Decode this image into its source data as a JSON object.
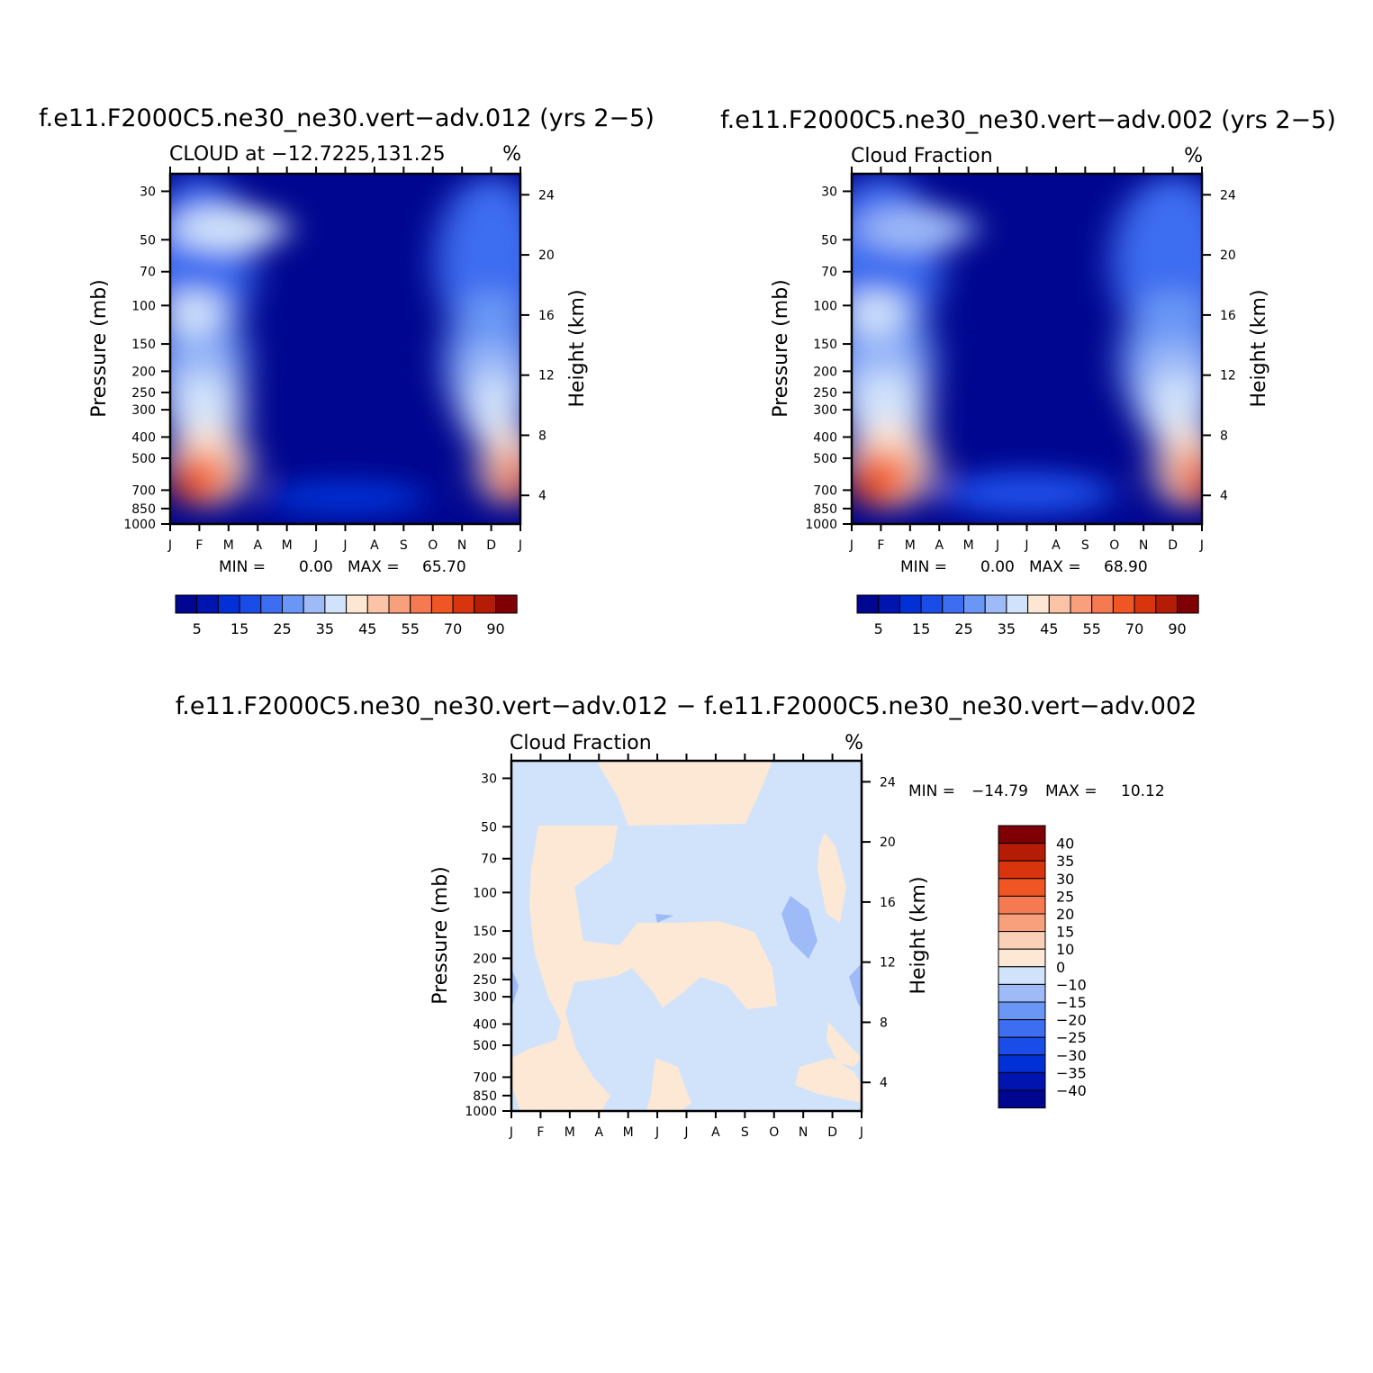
{
  "figure": {
    "background": "#ffffff"
  },
  "palette_abs": [
    "#00068f",
    "#0015b0",
    "#0030d6",
    "#1a4de8",
    "#3d6df0",
    "#6a97f5",
    "#9ebaf7",
    "#d1e3fb",
    "#fde6d3",
    "#fbc4a8",
    "#f8a07c",
    "#f57a52",
    "#f05524",
    "#d8350f",
    "#b41c06",
    "#7f0004"
  ],
  "palette_diff": [
    "#00068f",
    "#0015b0",
    "#0030d6",
    "#1a4de8",
    "#3d6df0",
    "#6a97f5",
    "#9ebaf7",
    "#d1e3fb",
    "#fde8d5",
    "#fbd0b9",
    "#f8a07c",
    "#f57a52",
    "#f05524",
    "#d8350f",
    "#b41c06",
    "#7f0004"
  ],
  "chart_data": [
    {
      "type": "heatmap",
      "id": "panel-a",
      "title": "f.e11.F2000C5.ne30_ne30.vert−adv.012 (yrs 2−5)",
      "left_label": "CLOUD at −12.7225,131.25",
      "right_label": "%",
      "ylabel": "Pressure (mb)",
      "ylabel_right": "Height (km)",
      "x_tick_labels": [
        "J",
        "F",
        "M",
        "A",
        "M",
        "J",
        "J",
        "A",
        "S",
        "O",
        "N",
        "D",
        "J"
      ],
      "y_tick_labels": [
        "30",
        "50",
        "70",
        "100",
        "150",
        "200",
        "250",
        "300",
        "400",
        "500",
        "700",
        "850",
        "1000"
      ],
      "y_tick_labels_right": [
        "24",
        "20",
        "16",
        "12",
        "8",
        "4"
      ],
      "stats": {
        "min_label": "MIN =",
        "min": "0.00",
        "max_label": "MAX =",
        "max": "65.70"
      },
      "colorbar_labels": [
        "5",
        "15",
        "25",
        "35",
        "45",
        "55",
        "70",
        "90"
      ],
      "blobs": [
        {
          "x": 1.0,
          "y": 4.0,
          "rx": 1.9,
          "ry": 3.9,
          "level": 4
        },
        {
          "x": 11.0,
          "y": 4.0,
          "rx": 1.9,
          "ry": 3.9,
          "level": 4
        },
        {
          "x": 1.0,
          "y": 8.5,
          "rx": 1.6,
          "ry": 3.2,
          "level": 5
        },
        {
          "x": 11.0,
          "y": 8.5,
          "rx": 1.6,
          "ry": 3.2,
          "level": 5
        },
        {
          "x": 1.1,
          "y": 10.0,
          "rx": 1.4,
          "ry": 2.3,
          "level": 6
        },
        {
          "x": 11.0,
          "y": 10.0,
          "rx": 1.2,
          "ry": 2.3,
          "level": 6
        },
        {
          "x": 1.2,
          "y": 11.0,
          "rx": 1.3,
          "ry": 1.8,
          "level": 7
        },
        {
          "x": 11.2,
          "y": 11.0,
          "rx": 1.0,
          "ry": 1.8,
          "level": 7
        },
        {
          "x": 1.3,
          "y": 13.3,
          "rx": 1.4,
          "ry": 1.9,
          "level": 8
        },
        {
          "x": 11.6,
          "y": 13.3,
          "rx": 1.0,
          "ry": 1.9,
          "level": 8
        },
        {
          "x": 1.1,
          "y": 13.8,
          "rx": 1.1,
          "ry": 1.4,
          "level": 10
        },
        {
          "x": 11.7,
          "y": 13.8,
          "rx": 0.7,
          "ry": 1.4,
          "level": 10
        },
        {
          "x": 0.9,
          "y": 14.1,
          "rx": 0.9,
          "ry": 1.0,
          "level": 12
        },
        {
          "x": 11.9,
          "y": 14.1,
          "rx": 0.45,
          "ry": 0.9,
          "level": 12
        },
        {
          "x": 6.0,
          "y": 14.8,
          "rx": 2.8,
          "ry": 0.8,
          "level": 2
        },
        {
          "x": 2.0,
          "y": 2.5,
          "rx": 2.0,
          "ry": 1.0,
          "level": 7
        },
        {
          "x": 0.8,
          "y": 6.4,
          "rx": 1.0,
          "ry": 1.1,
          "level": 7
        }
      ]
    },
    {
      "type": "heatmap",
      "id": "panel-b",
      "title": "f.e11.F2000C5.ne30_ne30.vert−adv.002 (yrs 2−5)",
      "left_label": "Cloud Fraction",
      "right_label": "%",
      "ylabel": "Pressure (mb)",
      "ylabel_right": "Height (km)",
      "x_tick_labels": [
        "J",
        "F",
        "M",
        "A",
        "M",
        "J",
        "J",
        "A",
        "S",
        "O",
        "N",
        "D",
        "J"
      ],
      "y_tick_labels": [
        "30",
        "50",
        "70",
        "100",
        "150",
        "200",
        "250",
        "300",
        "400",
        "500",
        "700",
        "850",
        "1000"
      ],
      "y_tick_labels_right": [
        "24",
        "20",
        "16",
        "12",
        "8",
        "4"
      ],
      "stats": {
        "min_label": "MIN =",
        "min": "0.00",
        "max_label": "MAX =",
        "max": "68.90"
      },
      "colorbar_labels": [
        "5",
        "15",
        "25",
        "35",
        "45",
        "55",
        "70",
        "90"
      ],
      "blobs": [
        {
          "x": 1.0,
          "y": 4.0,
          "rx": 2.1,
          "ry": 3.9,
          "level": 4
        },
        {
          "x": 11.0,
          "y": 4.0,
          "rx": 2.1,
          "ry": 3.9,
          "level": 4
        },
        {
          "x": 1.0,
          "y": 8.5,
          "rx": 1.8,
          "ry": 3.2,
          "level": 5
        },
        {
          "x": 11.0,
          "y": 8.5,
          "rx": 1.8,
          "ry": 3.2,
          "level": 5
        },
        {
          "x": 1.1,
          "y": 10.0,
          "rx": 1.5,
          "ry": 2.4,
          "level": 6
        },
        {
          "x": 11.0,
          "y": 10.0,
          "rx": 1.3,
          "ry": 2.4,
          "level": 6
        },
        {
          "x": 1.2,
          "y": 11.0,
          "rx": 1.4,
          "ry": 1.9,
          "level": 7
        },
        {
          "x": 11.2,
          "y": 11.0,
          "rx": 1.1,
          "ry": 1.9,
          "level": 7
        },
        {
          "x": 1.3,
          "y": 13.3,
          "rx": 1.5,
          "ry": 2.0,
          "level": 8
        },
        {
          "x": 11.5,
          "y": 13.3,
          "rx": 1.1,
          "ry": 2.0,
          "level": 8
        },
        {
          "x": 1.1,
          "y": 13.8,
          "rx": 1.2,
          "ry": 1.5,
          "level": 10
        },
        {
          "x": 11.7,
          "y": 13.8,
          "rx": 0.8,
          "ry": 1.5,
          "level": 10
        },
        {
          "x": 0.9,
          "y": 14.1,
          "rx": 0.95,
          "ry": 1.1,
          "level": 12
        },
        {
          "x": 11.9,
          "y": 14.1,
          "rx": 0.55,
          "ry": 1.0,
          "level": 12
        },
        {
          "x": 6.0,
          "y": 14.6,
          "rx": 3.0,
          "ry": 1.0,
          "level": 3
        },
        {
          "x": 2.2,
          "y": 2.5,
          "rx": 2.0,
          "ry": 1.0,
          "level": 6
        },
        {
          "x": 0.8,
          "y": 6.4,
          "rx": 1.0,
          "ry": 1.1,
          "level": 7
        }
      ]
    },
    {
      "type": "heatmap",
      "id": "panel-diff",
      "title": "f.e11.F2000C5.ne30_ne30.vert−adv.012 − f.e11.F2000C5.ne30_ne30.vert−adv.002",
      "left_label": "Cloud Fraction",
      "right_label": "%",
      "ylabel": "Pressure (mb)",
      "ylabel_right": "Height (km)",
      "x_tick_labels": [
        "J",
        "F",
        "M",
        "A",
        "M",
        "J",
        "J",
        "A",
        "S",
        "O",
        "N",
        "D",
        "J"
      ],
      "y_tick_labels": [
        "30",
        "50",
        "70",
        "100",
        "150",
        "200",
        "250",
        "300",
        "400",
        "500",
        "700",
        "850",
        "1000"
      ],
      "y_tick_labels_right": [
        "24",
        "20",
        "16",
        "12",
        "8",
        "4"
      ],
      "stats": {
        "min_label": "MIN =",
        "min": "−14.79",
        "max_label": "MAX =",
        "max": "10.12"
      },
      "colorbar_labels": [
        "40",
        "35",
        "30",
        "25",
        "20",
        "15",
        "10",
        "0",
        "−10",
        "−15",
        "−20",
        "−25",
        "−30",
        "−35",
        "−40"
      ]
    }
  ]
}
